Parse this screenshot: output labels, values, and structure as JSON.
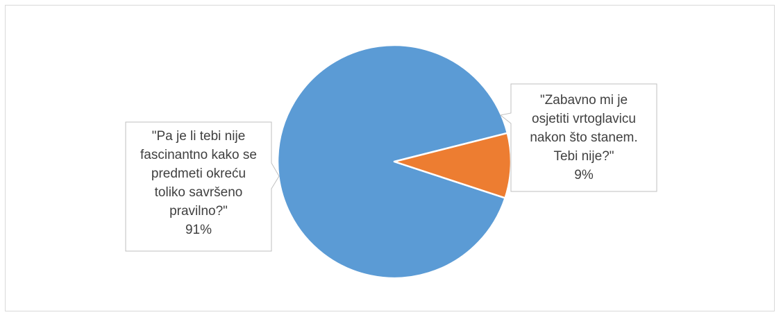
{
  "chart_data": {
    "type": "pie",
    "slices": [
      {
        "label_lines": [
          "\"Pa je li tebi nije",
          "fascinantno kako se",
          "predmeti okreću",
          "toliko savršeno",
          "pravilno?\""
        ],
        "percent_label": "91%",
        "value": 91,
        "color": "#5b9bd5"
      },
      {
        "label_lines": [
          "\"Zabavno mi je",
          "osjetiti vrtoglavicu",
          "nakon što stanem.",
          "Tebi nije?\""
        ],
        "percent_label": "9%",
        "value": 9,
        "color": "#ed7d31"
      }
    ],
    "legend": "none",
    "label_style": "callout"
  }
}
